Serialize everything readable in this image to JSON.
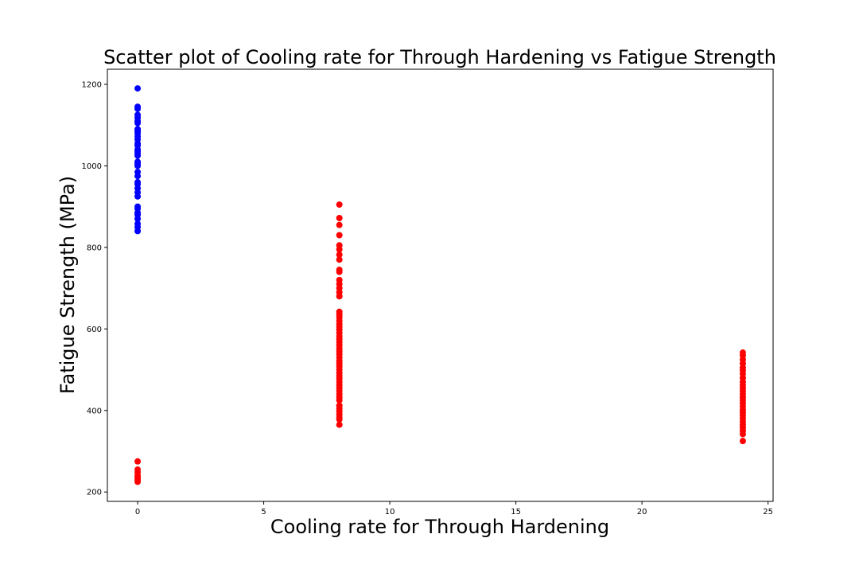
{
  "chart_data": {
    "type": "scatter",
    "title": "Scatter plot of Cooling rate for Through Hardening vs Fatigue Strength",
    "xlabel": "Cooling rate for Through Hardening",
    "ylabel": "Fatigue Strength (MPa)",
    "xlim": [
      -1.2,
      25.2
    ],
    "ylim": [
      177,
      1237
    ],
    "xticks": [
      0,
      5,
      10,
      15,
      20,
      25
    ],
    "yticks": [
      200,
      400,
      600,
      800,
      1000,
      1200
    ],
    "grid": false,
    "legend": "none",
    "series": [
      {
        "color": "#0000ff",
        "points": [
          [
            0,
            1190
          ],
          [
            0,
            1145
          ],
          [
            0,
            1140
          ],
          [
            0,
            1125
          ],
          [
            0,
            1118
          ],
          [
            0,
            1110
          ],
          [
            0,
            1105
          ],
          [
            0,
            1090
          ],
          [
            0,
            1085
          ],
          [
            0,
            1080
          ],
          [
            0,
            1072
          ],
          [
            0,
            1065
          ],
          [
            0,
            1055
          ],
          [
            0,
            1050
          ],
          [
            0,
            1040
          ],
          [
            0,
            1035
          ],
          [
            0,
            1030
          ],
          [
            0,
            1025
          ],
          [
            0,
            1010
          ],
          [
            0,
            1005
          ],
          [
            0,
            1000
          ],
          [
            0,
            985
          ],
          [
            0,
            975
          ],
          [
            0,
            960
          ],
          [
            0,
            955
          ],
          [
            0,
            945
          ],
          [
            0,
            935
          ],
          [
            0,
            925
          ],
          [
            0,
            900
          ],
          [
            0,
            895
          ],
          [
            0,
            885
          ],
          [
            0,
            880
          ],
          [
            0,
            870
          ],
          [
            0,
            858
          ],
          [
            0,
            850
          ],
          [
            0,
            840
          ]
        ]
      },
      {
        "color": "#ff0000",
        "points": [
          [
            0,
            275
          ],
          [
            0,
            255
          ],
          [
            0,
            248
          ],
          [
            0,
            240
          ],
          [
            0,
            235
          ],
          [
            0,
            230
          ],
          [
            0,
            225
          ],
          [
            8,
            905
          ],
          [
            8,
            872
          ],
          [
            8,
            855
          ],
          [
            8,
            830
          ],
          [
            8,
            805
          ],
          [
            8,
            795
          ],
          [
            8,
            782
          ],
          [
            8,
            770
          ],
          [
            8,
            745
          ],
          [
            8,
            740
          ],
          [
            8,
            720
          ],
          [
            8,
            710
          ],
          [
            8,
            700
          ],
          [
            8,
            690
          ],
          [
            8,
            680
          ],
          [
            8,
            642
          ],
          [
            8,
            635
          ],
          [
            8,
            628
          ],
          [
            8,
            620
          ],
          [
            8,
            612
          ],
          [
            8,
            605
          ],
          [
            8,
            598
          ],
          [
            8,
            590
          ],
          [
            8,
            582
          ],
          [
            8,
            575
          ],
          [
            8,
            568
          ],
          [
            8,
            560
          ],
          [
            8,
            552
          ],
          [
            8,
            545
          ],
          [
            8,
            538
          ],
          [
            8,
            530
          ],
          [
            8,
            522
          ],
          [
            8,
            515
          ],
          [
            8,
            508
          ],
          [
            8,
            500
          ],
          [
            8,
            492
          ],
          [
            8,
            485
          ],
          [
            8,
            478
          ],
          [
            8,
            470
          ],
          [
            8,
            462
          ],
          [
            8,
            455
          ],
          [
            8,
            448
          ],
          [
            8,
            440
          ],
          [
            8,
            432
          ],
          [
            8,
            425
          ],
          [
            8,
            412
          ],
          [
            8,
            405
          ],
          [
            8,
            398
          ],
          [
            8,
            390
          ],
          [
            8,
            382
          ],
          [
            8,
            378
          ],
          [
            8,
            365
          ],
          [
            24,
            542
          ],
          [
            24,
            535
          ],
          [
            24,
            525
          ],
          [
            24,
            515
          ],
          [
            24,
            505
          ],
          [
            24,
            498
          ],
          [
            24,
            490
          ],
          [
            24,
            480
          ],
          [
            24,
            470
          ],
          [
            24,
            462
          ],
          [
            24,
            455
          ],
          [
            24,
            448
          ],
          [
            24,
            440
          ],
          [
            24,
            432
          ],
          [
            24,
            425
          ],
          [
            24,
            418
          ],
          [
            24,
            410
          ],
          [
            24,
            402
          ],
          [
            24,
            395
          ],
          [
            24,
            388
          ],
          [
            24,
            380
          ],
          [
            24,
            372
          ],
          [
            24,
            365
          ],
          [
            24,
            358
          ],
          [
            24,
            350
          ],
          [
            24,
            342
          ],
          [
            24,
            325
          ]
        ]
      }
    ]
  }
}
